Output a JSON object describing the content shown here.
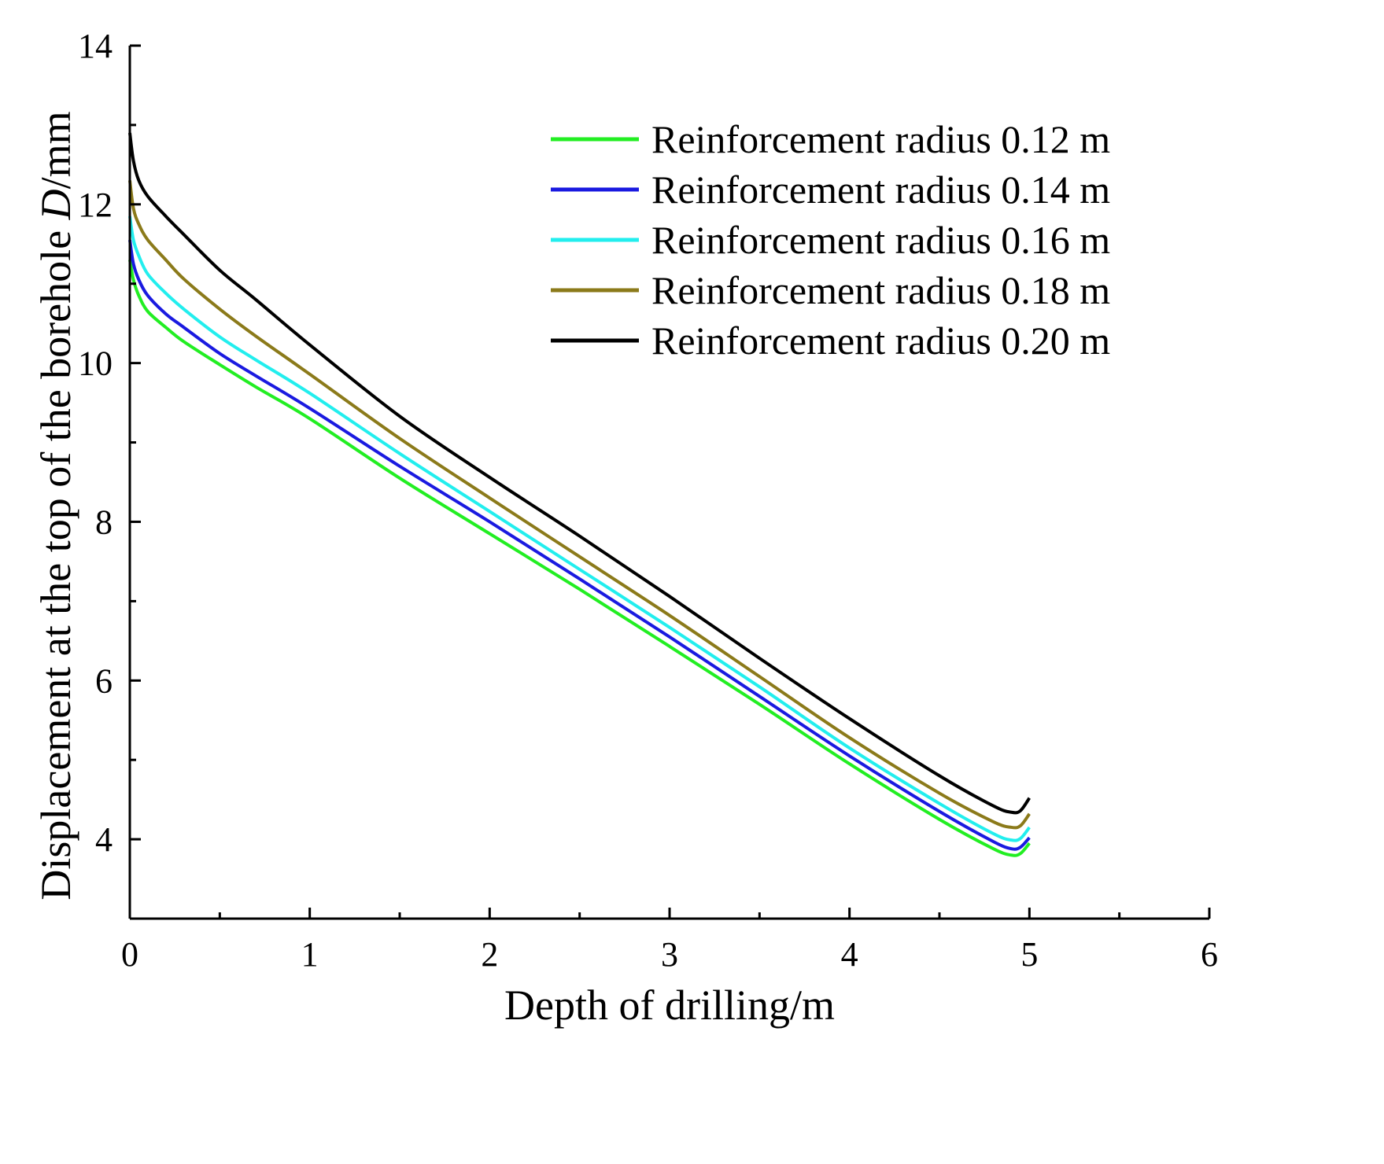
{
  "chart_data": {
    "type": "line",
    "title": "",
    "xlabel": "Depth of drilling/m",
    "ylabel_prefix": "Displacement at the top of the borehole ",
    "ylabel_var": "D",
    "ylabel_suffix": "/mm",
    "xlim": [
      0,
      6
    ],
    "ylim": [
      3,
      14
    ],
    "xticks": [
      0,
      1,
      2,
      3,
      4,
      5,
      6
    ],
    "yticks": [
      4,
      6,
      8,
      10,
      12,
      14
    ],
    "xtick_labels": [
      "0",
      "1",
      "2",
      "3",
      "4",
      "5",
      "6"
    ],
    "ytick_labels": [
      "4",
      "6",
      "8",
      "10",
      "12",
      "14"
    ],
    "grid": false,
    "legend_position": "top-right",
    "x": [
      0,
      0.02,
      0.05,
      0.1,
      0.2,
      0.3,
      0.5,
      0.7,
      1.0,
      1.5,
      2.0,
      2.5,
      3.0,
      3.5,
      4.0,
      4.5,
      4.8,
      4.9,
      4.95,
      5.0
    ],
    "series": [
      {
        "name": "Reinforcement radius 0.12 m",
        "color": "#22ee22",
        "values": [
          11.3,
          11.05,
          10.85,
          10.65,
          10.45,
          10.27,
          9.98,
          9.7,
          9.3,
          8.55,
          7.85,
          7.15,
          6.43,
          5.7,
          4.95,
          4.25,
          3.88,
          3.8,
          3.82,
          3.95
        ]
      },
      {
        "name": "Reinforcement radius 0.14 m",
        "color": "#1a1ae0",
        "values": [
          11.55,
          11.25,
          11.05,
          10.85,
          10.62,
          10.45,
          10.12,
          9.84,
          9.43,
          8.7,
          8.0,
          7.28,
          6.55,
          5.8,
          5.05,
          4.35,
          3.97,
          3.88,
          3.9,
          4.02
        ]
      },
      {
        "name": "Reinforcement radius 0.16 m",
        "color": "#22eeee",
        "values": [
          11.85,
          11.55,
          11.35,
          11.12,
          10.88,
          10.68,
          10.33,
          10.04,
          9.62,
          8.86,
          8.13,
          7.4,
          6.67,
          5.92,
          5.15,
          4.45,
          4.07,
          3.99,
          4.01,
          4.15
        ]
      },
      {
        "name": "Reinforcement radius 0.18 m",
        "color": "#8b7a1a",
        "values": [
          12.3,
          11.95,
          11.75,
          11.55,
          11.3,
          11.06,
          10.68,
          10.34,
          9.86,
          9.05,
          8.3,
          7.56,
          6.82,
          6.05,
          5.28,
          4.58,
          4.22,
          4.15,
          4.17,
          4.32
        ]
      },
      {
        "name": "Reinforcement radius 0.20 m",
        "color": "#000000",
        "values": [
          12.9,
          12.55,
          12.3,
          12.1,
          11.85,
          11.62,
          11.17,
          10.8,
          10.23,
          9.33,
          8.56,
          7.82,
          7.06,
          6.28,
          5.52,
          4.8,
          4.42,
          4.34,
          4.36,
          4.52
        ]
      }
    ]
  }
}
